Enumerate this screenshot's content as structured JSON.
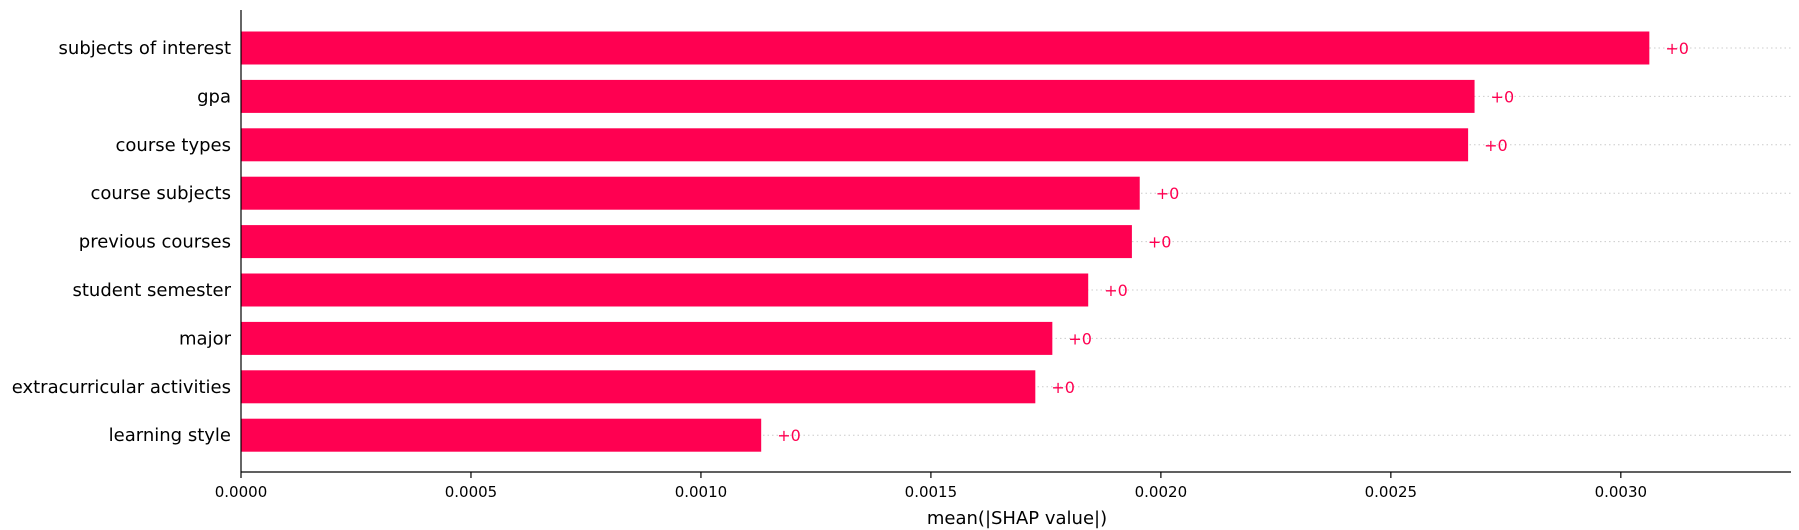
{
  "chart_data": {
    "type": "bar",
    "orientation": "horizontal",
    "categories": [
      "subjects of interest",
      "gpa",
      "course types",
      "course subjects",
      "previous courses",
      "student semester",
      "major",
      "extracurricular activities",
      "learning style"
    ],
    "values": [
      0.003062,
      0.002682,
      0.002668,
      0.001954,
      0.001937,
      0.001842,
      0.001764,
      0.001727,
      0.001131
    ],
    "value_labels": [
      "+0",
      "+0",
      "+0",
      "+0",
      "+0",
      "+0",
      "+0",
      "+0",
      "+0"
    ],
    "xlabel": "mean(|SHAP value|)",
    "ylabel": "",
    "title": "",
    "xlim": [
      0,
      0.00337
    ],
    "xticks": [
      0,
      0.0005,
      0.001,
      0.0015,
      0.002,
      0.0025,
      0.003
    ],
    "xtick_labels": [
      "0.0000",
      "0.0005",
      "0.0010",
      "0.0015",
      "0.0020",
      "0.0025",
      "0.0030"
    ],
    "grid": "dotted horizontal guide lines",
    "bar_color": "#ff0051",
    "label_color": "#ff0051"
  }
}
